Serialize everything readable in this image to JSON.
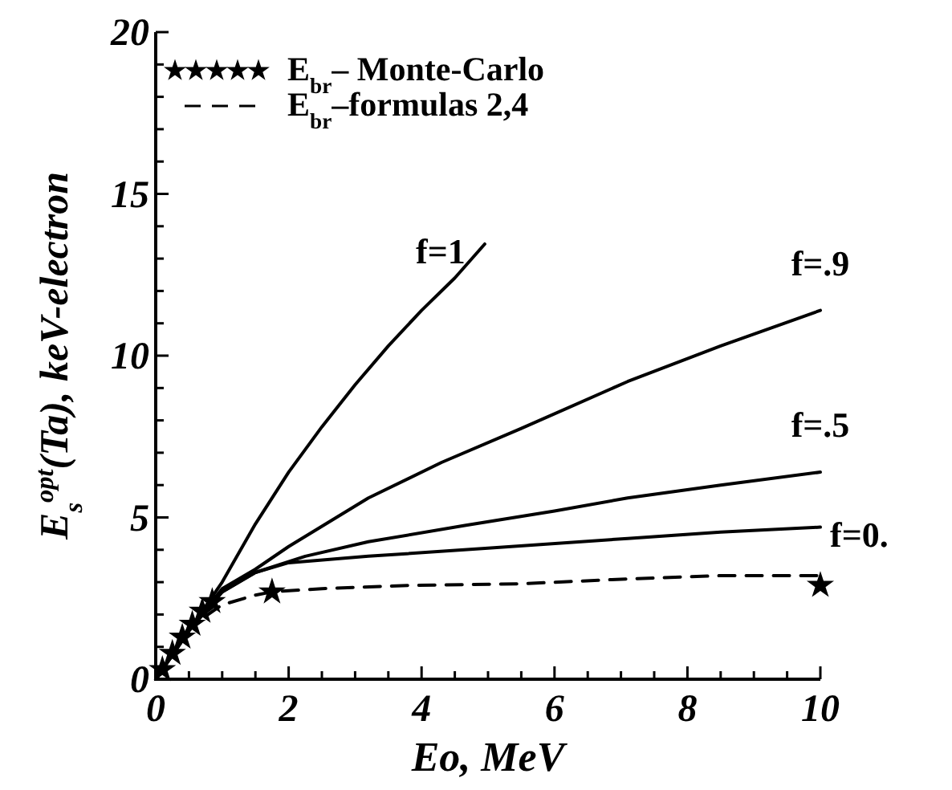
{
  "chart_data": {
    "type": "line",
    "xlabel": "Eo,  MeV",
    "ylabel": "E$_{s}$$^{opt}$(Ta),  keV-electron",
    "xlim": [
      0,
      10
    ],
    "ylim": [
      0,
      20
    ],
    "xticks": [
      0,
      {
        "value": 0.5,
        "label": null
      },
      2,
      {
        "value": 1,
        "label": null
      },
      {
        "value": 1.5,
        "label": null
      },
      {
        "value": 2.5,
        "label": null
      },
      {
        "value": 3,
        "label": null
      },
      {
        "value": 3.5,
        "label": null
      },
      4,
      {
        "value": 4.5,
        "label": null
      },
      {
        "value": 5,
        "label": null
      },
      {
        "value": 5.5,
        "label": null
      },
      6,
      {
        "value": 6.5,
        "label": null
      },
      {
        "value": 7,
        "label": null
      },
      {
        "value": 7.5,
        "label": null
      },
      8,
      {
        "value": 8.5,
        "label": null
      },
      {
        "value": 9,
        "label": null
      },
      {
        "value": 9.5,
        "label": null
      },
      10
    ],
    "yticks": [
      0,
      {
        "value": 1,
        "label": null
      },
      {
        "value": 2,
        "label": null
      },
      {
        "value": 3,
        "label": null
      },
      {
        "value": 4,
        "label": null
      },
      5,
      {
        "value": 6,
        "label": null
      },
      {
        "value": 7,
        "label": null
      },
      {
        "value": 8,
        "label": null
      },
      {
        "value": 9,
        "label": null
      },
      10,
      {
        "value": 11,
        "label": null
      },
      {
        "value": 12,
        "label": null
      },
      {
        "value": 13,
        "label": null
      },
      {
        "value": 14,
        "label": null
      },
      15,
      {
        "value": 16,
        "label": null
      },
      {
        "value": 17,
        "label": null
      },
      {
        "value": 18,
        "label": null
      },
      {
        "value": 19,
        "label": null
      },
      20
    ],
    "legend": "top left",
    "grid": false,
    "series": [
      {
        "name": "E$_{br}$– Monte-Carlo",
        "type": "scatter",
        "marker": "star",
        "color": "#000000",
        "x": [
          0.1,
          0.25,
          0.4,
          0.55,
          0.7,
          0.85,
          1.75,
          10
        ],
        "values": [
          0.3,
          0.8,
          1.3,
          1.7,
          2.1,
          2.4,
          2.7,
          2.9
        ]
      },
      {
        "name": "E$_{br}$–formulas 2,4",
        "line_style": "dashed",
        "color": "#000000",
        "x": [
          0,
          0.5,
          1,
          1.5,
          1.75,
          2.5,
          3.8,
          5.5,
          7.1,
          8.5,
          10
        ],
        "values": [
          0,
          1.6,
          2.3,
          2.6,
          2.7,
          2.8,
          2.9,
          2.95,
          3.1,
          3.2,
          3.2
        ]
      },
      {
        "name": "f=1",
        "line_style": "solid",
        "color": "#000000",
        "x": [
          0,
          0.5,
          1,
          1.5,
          2,
          2.5,
          3,
          3.5,
          4,
          4.5,
          4.95
        ],
        "values": [
          0,
          1.5,
          3.0,
          4.8,
          6.4,
          7.8,
          9.1,
          10.3,
          11.4,
          12.4,
          13.45
        ]
      },
      {
        "name": "f=.9",
        "line_style": "solid",
        "color": "#000000",
        "x": [
          0,
          0.5,
          1,
          1.5,
          2,
          3.2,
          4.3,
          5.5,
          7.1,
          8.5,
          10
        ],
        "values": [
          0,
          1.5,
          2.8,
          3.4,
          4.1,
          5.6,
          6.7,
          7.75,
          9.2,
          10.3,
          11.4
        ]
      },
      {
        "name": "f=.5",
        "line_style": "solid",
        "color": "#000000",
        "x": [
          0,
          0.5,
          1,
          1.5,
          2.25,
          3.2,
          4.65,
          6,
          7.1,
          8.5,
          10
        ],
        "values": [
          0,
          1.5,
          2.7,
          3.3,
          3.8,
          4.25,
          4.75,
          5.2,
          5.6,
          6.0,
          6.4
        ]
      },
      {
        "name": "f=0.",
        "line_style": "solid",
        "color": "#000000",
        "x": [
          0,
          0.5,
          1,
          1.5,
          2,
          3.2,
          5,
          7.1,
          8.5,
          10
        ],
        "values": [
          0,
          1.5,
          2.7,
          3.3,
          3.6,
          3.8,
          4.05,
          4.35,
          4.55,
          4.7
        ]
      }
    ]
  }
}
